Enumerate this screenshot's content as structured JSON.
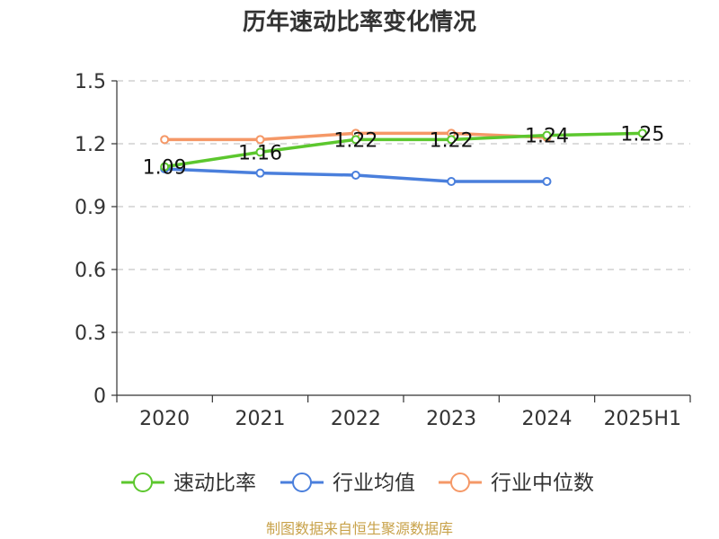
{
  "chart_data": {
    "type": "line",
    "title": "历年速动比率变化情况",
    "categories": [
      "2020",
      "2021",
      "2022",
      "2023",
      "2024",
      "2025H1"
    ],
    "y_ticks": [
      "0",
      "0.3",
      "0.6",
      "0.9",
      "1.2",
      "1.5"
    ],
    "ylim": [
      0,
      1.5
    ],
    "grid": true,
    "legend_position": "bottom",
    "series": [
      {
        "name": "速动比率",
        "color": "#5cc72e",
        "values": [
          1.09,
          1.16,
          1.22,
          1.22,
          1.24,
          1.25
        ],
        "labels": [
          "1.09",
          "1.16",
          "1.22",
          "1.22",
          "1.24",
          "1.25"
        ]
      },
      {
        "name": "行业均值",
        "color": "#4a7fdc",
        "values": [
          1.08,
          1.06,
          1.05,
          1.02,
          1.02,
          null
        ]
      },
      {
        "name": "行业中位数",
        "color": "#f59867",
        "values": [
          1.22,
          1.22,
          1.25,
          1.25,
          1.23,
          null
        ]
      }
    ]
  },
  "footer": {
    "source": "制图数据来自恒生聚源数据库"
  }
}
